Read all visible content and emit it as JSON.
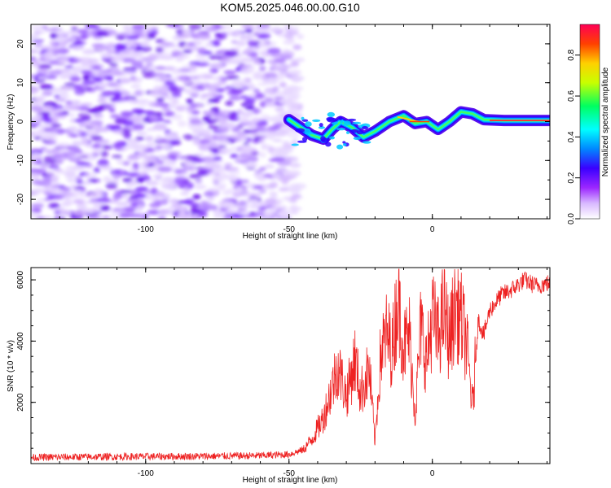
{
  "figure": {
    "title": "KOM5.2025.046.00.00.G10"
  },
  "chart_data": [
    {
      "type": "heatmap",
      "xlabel": "Height of straight line (km)",
      "ylabel": "Frequency (Hz)",
      "xlim": [
        -140,
        41
      ],
      "ylim": [
        -25,
        25
      ],
      "xticks": [
        -100,
        -50,
        0
      ],
      "yticks": [
        -20,
        -10,
        0,
        10,
        20
      ],
      "colorbar": {
        "label": "Normalized spectral amplitude",
        "ticks": [
          0.0,
          0.2,
          0.4,
          0.6,
          0.8
        ],
        "range": [
          0,
          0.95
        ],
        "colormap": [
          "#ffffff",
          "#9c27ff",
          "#3a00ff",
          "#0088ff",
          "#00ffff",
          "#00ff60",
          "#c8ff00",
          "#ffd000",
          "#ff4000",
          "#ff0055"
        ]
      },
      "ridge": {
        "description_points": [
          [
            -50,
            0.5
          ],
          [
            -46,
            -1.5
          ],
          [
            -42,
            -3.5
          ],
          [
            -38,
            -4.5
          ],
          [
            -35,
            -2
          ],
          [
            -32,
            0
          ],
          [
            -28,
            -1.5
          ],
          [
            -24,
            -4
          ],
          [
            -20,
            -2.5
          ],
          [
            -15,
            0
          ],
          [
            -10,
            1.5
          ],
          [
            -6,
            -0.5
          ],
          [
            -2,
            0
          ],
          [
            2,
            -2
          ],
          [
            6,
            0
          ],
          [
            10,
            2.5
          ],
          [
            14,
            2
          ],
          [
            18,
            0.5
          ],
          [
            25,
            0.3
          ],
          [
            41,
            0.3
          ]
        ]
      }
    },
    {
      "type": "line",
      "xlabel": "Height of straight line (km)",
      "ylabel": "SNR (10 * v/v)",
      "xlim": [
        -140,
        41
      ],
      "ylim": [
        0,
        6400
      ],
      "xticks": [
        -100,
        -50,
        0
      ],
      "yticks": [
        2000,
        4000,
        6000
      ],
      "series": [
        {
          "color": "#ee2222",
          "points": [
            [
              -140,
              200
            ],
            [
              -120,
              220
            ],
            [
              -100,
              230
            ],
            [
              -80,
              240
            ],
            [
              -60,
              260
            ],
            [
              -50,
              300
            ],
            [
              -45,
              450
            ],
            [
              -42,
              800
            ],
            [
              -38,
              1500
            ],
            [
              -35,
              2500
            ],
            [
              -33,
              3200
            ],
            [
              -30,
              2200
            ],
            [
              -27,
              3400
            ],
            [
              -25,
              2300
            ],
            [
              -22,
              3100
            ],
            [
              -20,
              700
            ],
            [
              -18,
              3600
            ],
            [
              -16,
              4200
            ],
            [
              -14,
              3700
            ],
            [
              -12,
              5500
            ],
            [
              -10,
              3800
            ],
            [
              -8,
              4200
            ],
            [
              -6,
              1600
            ],
            [
              -4,
              4500
            ],
            [
              -2,
              3300
            ],
            [
              0,
              4800
            ],
            [
              2,
              4100
            ],
            [
              4,
              5000
            ],
            [
              6,
              4000
            ],
            [
              8,
              5200
            ],
            [
              10,
              4700
            ],
            [
              12,
              3900
            ],
            [
              14,
              1800
            ],
            [
              16,
              4700
            ],
            [
              18,
              4200
            ],
            [
              20,
              5000
            ],
            [
              24,
              5500
            ],
            [
              28,
              5700
            ],
            [
              32,
              6000
            ],
            [
              36,
              5800
            ],
            [
              41,
              5900
            ]
          ]
        }
      ]
    }
  ]
}
